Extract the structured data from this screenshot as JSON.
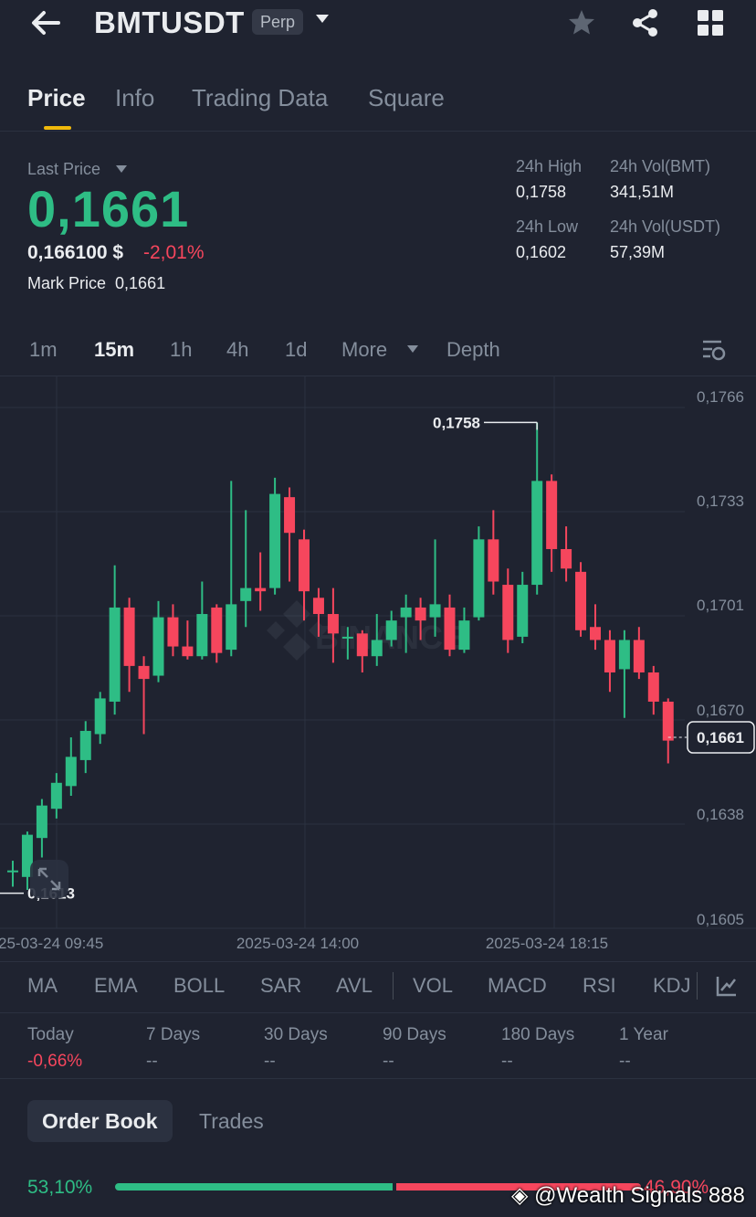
{
  "header": {
    "title": "BMTUSDT",
    "badge": "Perp",
    "icons": [
      "back-arrow-icon",
      "star-icon",
      "share-icon",
      "grid-icon"
    ]
  },
  "tabs": [
    "Price",
    "Info",
    "Trading Data",
    "Square"
  ],
  "price": {
    "last_price_label": "Last Price",
    "last_price": "0,1661",
    "usd_price": "0,166100 $",
    "change": "-2,01%",
    "mark_price_label": "Mark Price",
    "mark_price": "0,1661"
  },
  "stats": {
    "high_label": "24h High",
    "high": "0,1758",
    "vol_bmt_label": "24h Vol(BMT)",
    "vol_bmt": "341,51M",
    "low_label": "24h Low",
    "low": "0,1602",
    "vol_usdt_label": "24h Vol(USDT)",
    "vol_usdt": "57,39M"
  },
  "intervals": [
    "1m",
    "15m",
    "1h",
    "4h",
    "1d",
    "More",
    "Depth"
  ],
  "chart_data": {
    "type": "candlestick",
    "y_ticks": [
      "0,1766",
      "0,1733",
      "0,1701",
      "0,1670",
      "0,1638",
      "0,1605"
    ],
    "x_ticks": [
      "25-03-24 09:45",
      "2025-03-24 14:00",
      "2025-03-24 18:15"
    ],
    "high_marker": "0,1758",
    "low_marker": "0,1613",
    "last_price_tag": "0,1661",
    "up_color": "#2ebd85",
    "down_color": "#f6465d",
    "candles": [
      [
        0.162,
        0.162,
        0.1623,
        0.1615
      ],
      [
        0.1618,
        0.1631,
        0.1632,
        0.1614
      ],
      [
        0.163,
        0.164,
        0.1642,
        0.1624
      ],
      [
        0.1639,
        0.1647,
        0.165,
        0.1636
      ],
      [
        0.1646,
        0.1655,
        0.1661,
        0.1643
      ],
      [
        0.1654,
        0.1663,
        0.1666,
        0.165
      ],
      [
        0.1662,
        0.1673,
        0.1675,
        0.1659
      ],
      [
        0.1672,
        0.1701,
        0.1714,
        0.1668
      ],
      [
        0.1701,
        0.1683,
        0.1704,
        0.1675
      ],
      [
        0.1683,
        0.1679,
        0.1686,
        0.1662
      ],
      [
        0.168,
        0.1698,
        0.1703,
        0.1678
      ],
      [
        0.1698,
        0.1689,
        0.1702,
        0.1686
      ],
      [
        0.1689,
        0.1686,
        0.1697,
        0.1685
      ],
      [
        0.1686,
        0.1699,
        0.1709,
        0.1685
      ],
      [
        0.1701,
        0.1687,
        0.1702,
        0.1684
      ],
      [
        0.1688,
        0.1702,
        0.174,
        0.1686
      ],
      [
        0.1703,
        0.1707,
        0.1731,
        0.1695
      ],
      [
        0.1707,
        0.1706,
        0.1718,
        0.17
      ],
      [
        0.1707,
        0.1736,
        0.1741,
        0.1705
      ],
      [
        0.1735,
        0.1724,
        0.1738,
        0.1709
      ],
      [
        0.1722,
        0.1706,
        0.1725,
        0.1697
      ],
      [
        0.1704,
        0.1699,
        0.1707,
        0.1692
      ],
      [
        0.1699,
        0.1693,
        0.1707,
        0.1684
      ],
      [
        0.1692,
        0.1692,
        0.1695,
        0.1685
      ],
      [
        0.1693,
        0.1686,
        0.1694,
        0.1681
      ],
      [
        0.1686,
        0.1691,
        0.1699,
        0.1683
      ],
      [
        0.1691,
        0.1697,
        0.17,
        0.1689
      ],
      [
        0.1698,
        0.1701,
        0.1705,
        0.1687
      ],
      [
        0.1701,
        0.1697,
        0.1704,
        0.1691
      ],
      [
        0.1698,
        0.1702,
        0.1722,
        0.1692
      ],
      [
        0.1701,
        0.1688,
        0.1705,
        0.1686
      ],
      [
        0.1688,
        0.1697,
        0.1701,
        0.1687
      ],
      [
        0.1698,
        0.1722,
        0.1726,
        0.1697
      ],
      [
        0.1722,
        0.1709,
        0.1731,
        0.1705
      ],
      [
        0.1708,
        0.1691,
        0.1713,
        0.1687
      ],
      [
        0.1692,
        0.1708,
        0.1712,
        0.169
      ],
      [
        0.1708,
        0.174,
        0.1758,
        0.1705
      ],
      [
        0.174,
        0.1719,
        0.1742,
        0.1712
      ],
      [
        0.1719,
        0.1713,
        0.1726,
        0.1709
      ],
      [
        0.1712,
        0.1694,
        0.1715,
        0.1692
      ],
      [
        0.1695,
        0.1691,
        0.1702,
        0.1688
      ],
      [
        0.1691,
        0.1681,
        0.1694,
        0.1675
      ],
      [
        0.1682,
        0.1691,
        0.1694,
        0.1667
      ],
      [
        0.1691,
        0.1681,
        0.1695,
        0.1679
      ],
      [
        0.1681,
        0.1672,
        0.1683,
        0.1668
      ],
      [
        0.1672,
        0.166,
        0.1673,
        0.1653
      ]
    ]
  },
  "indicators": [
    "MA",
    "EMA",
    "BOLL",
    "SAR",
    "AVL",
    "VOL",
    "MACD",
    "RSI",
    "KDJ"
  ],
  "performance": [
    {
      "label": "Today",
      "value": "-0,66%"
    },
    {
      "label": "7 Days",
      "value": "--"
    },
    {
      "label": "30 Days",
      "value": "--"
    },
    {
      "label": "90 Days",
      "value": "--"
    },
    {
      "label": "180 Days",
      "value": "--"
    },
    {
      "label": "1 Year",
      "value": "--"
    }
  ],
  "orderbook": {
    "tabs": [
      "Order Book",
      "Trades"
    ],
    "buy_pct": "53,10%",
    "sell_pct": "46,90%",
    "buy_ratio": 0.531
  },
  "watermark": "@Wealth Signals 888"
}
